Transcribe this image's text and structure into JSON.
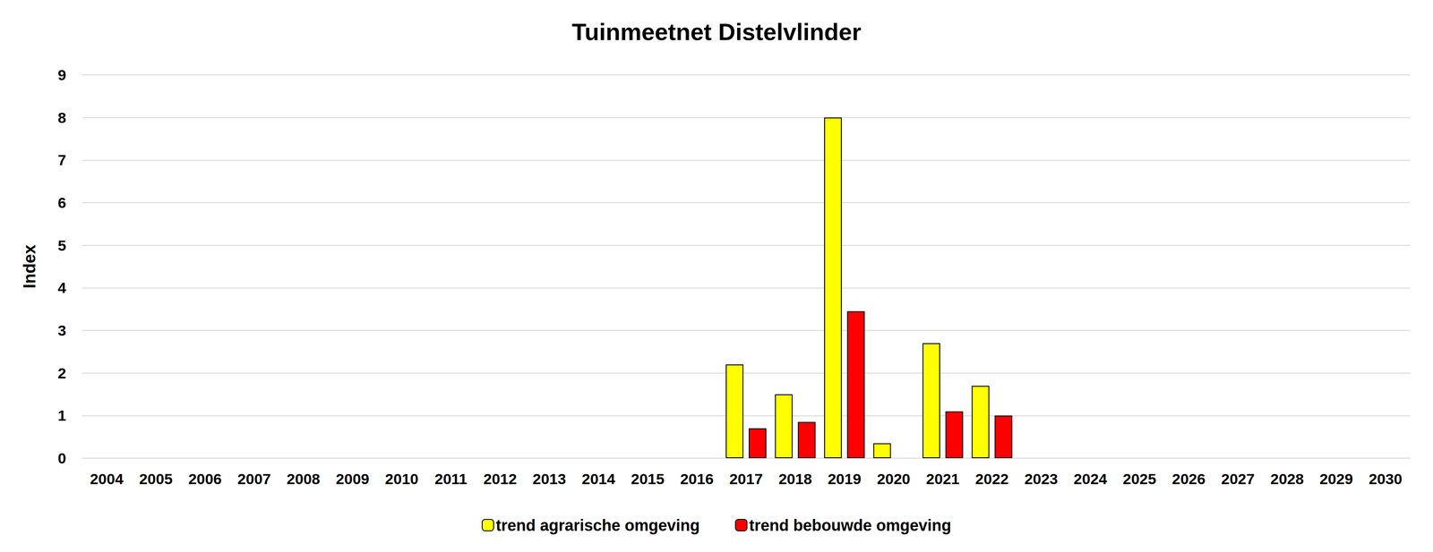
{
  "chart_data": {
    "type": "bar",
    "title": "Tuinmeetnet Distelvlinder",
    "y_label": "Index",
    "categories": [
      "2004",
      "2005",
      "2006",
      "2007",
      "2008",
      "2009",
      "2010",
      "2011",
      "2012",
      "2013",
      "2014",
      "2015",
      "2016",
      "2017",
      "2018",
      "2019",
      "2020",
      "2021",
      "2022",
      "2023",
      "2024",
      "2025",
      "2026",
      "2027",
      "2028",
      "2029",
      "2030"
    ],
    "series": [
      {
        "name": "trend agrarische omgeving",
        "color": "#ffff00",
        "values": [
          null,
          null,
          null,
          null,
          null,
          null,
          null,
          null,
          null,
          null,
          null,
          null,
          null,
          2.2,
          1.5,
          8.0,
          0.35,
          2.7,
          1.7,
          null,
          null,
          null,
          null,
          null,
          null,
          null,
          null
        ]
      },
      {
        "name": "trend bebouwde omgeving",
        "color": "#ff0000",
        "values": [
          null,
          null,
          null,
          null,
          null,
          null,
          null,
          null,
          null,
          null,
          null,
          null,
          null,
          0.7,
          0.85,
          3.45,
          null,
          1.1,
          1.0,
          null,
          null,
          null,
          null,
          null,
          null,
          null,
          null
        ]
      }
    ],
    "ylim": [
      0,
      9
    ],
    "yticks": [
      0,
      1,
      2,
      3,
      4,
      5,
      6,
      7,
      8,
      9
    ],
    "grid": true,
    "legend": "bottom"
  }
}
